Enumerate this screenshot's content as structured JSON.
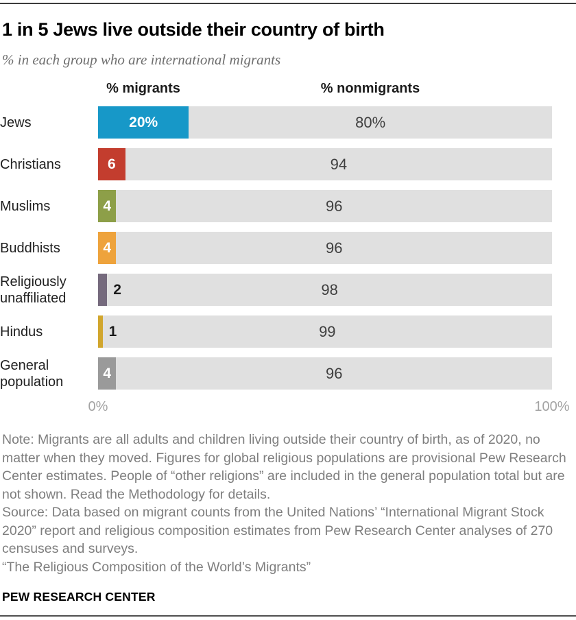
{
  "page": {
    "title": "1 in 5 Jews live outside their country of birth",
    "subtitle": "% in each group who are international migrants",
    "brand": "PEW RESEARCH CENTER"
  },
  "headers": {
    "migrants": "% migrants",
    "nonmigrants": "% nonmigrants"
  },
  "axis": {
    "min_label": "0%",
    "max_label": "100%"
  },
  "chart_data": {
    "type": "bar",
    "orientation": "horizontal",
    "stacked": true,
    "title": "1 in 5 Jews live outside their country of birth",
    "subtitle": "% in each group who are international migrants",
    "categories": [
      "Jews",
      "Christians",
      "Muslims",
      "Buddhists",
      "Religiously unaffiliated",
      "Hindus",
      "General population"
    ],
    "series": [
      {
        "name": "% migrants",
        "values": [
          20,
          6,
          4,
          4,
          2,
          1,
          4
        ]
      },
      {
        "name": "% nonmigrants",
        "values": [
          80,
          94,
          96,
          96,
          98,
          99,
          96
        ]
      }
    ],
    "migrant_value_labels": [
      "20%",
      "6",
      "4",
      "4",
      "2",
      "1",
      "4"
    ],
    "nonmigrant_value_labels": [
      "80%",
      "94",
      "96",
      "96",
      "98",
      "99",
      "96"
    ],
    "migrant_bar_colors": [
      "#1798c8",
      "#c33d2e",
      "#8d9f48",
      "#eea33c",
      "#756a7d",
      "#d1a62d",
      "#9a9a9a"
    ],
    "nonmigrant_track_color": "#e0e0e0",
    "xlim": [
      0,
      100
    ],
    "x_tick_labels": [
      "0%",
      "100%"
    ],
    "column_headers": [
      "% migrants",
      "% nonmigrants"
    ],
    "grid": false,
    "legend_position": "column headers above chart",
    "value_label_rule": "migrant value shown in white inside colored bar when it fits; shown in black just right of bar for values 2 and 1"
  },
  "notes": {
    "note": "Note: Migrants are all adults and children living outside their country of birth, as of 2020, no matter when they moved. Figures for global religious populations are provisional Pew Research Center estimates. People of “other religions” are included in the general population total but are not shown. Read the Methodology for details.",
    "source": "Source: Data based on migrant counts from the United Nations’ “International Migrant Stock 2020” report and religious composition estimates from Pew Research Center analyses of 270 censuses and surveys.",
    "report": "“The Religious Composition of the World’s Migrants”"
  }
}
